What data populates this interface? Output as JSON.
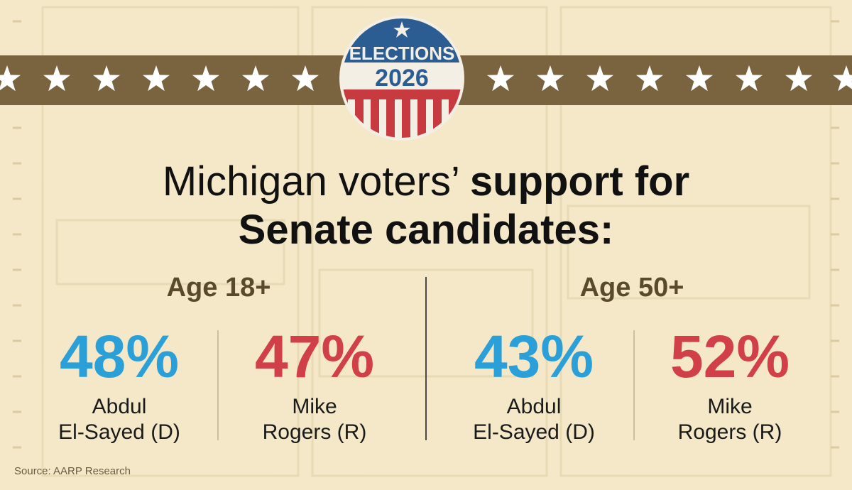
{
  "badge": {
    "top": "ELECTIONS",
    "year": "2026"
  },
  "title": {
    "regular": "Michigan voters’",
    "bold_line1": "support for",
    "bold_line2": "Senate candidates:"
  },
  "groups": [
    {
      "label": "Age 18+",
      "candidates": [
        {
          "value": "48%",
          "name": [
            "Abdul",
            "El-Sayed (D)"
          ],
          "color": "#2a9fd8"
        },
        {
          "value": "47%",
          "name": [
            "Mike",
            "Rogers (R)"
          ],
          "color": "#d13f48"
        }
      ]
    },
    {
      "label": "Age 50+",
      "candidates": [
        {
          "value": "43%",
          "name": [
            "Abdul",
            "El-Sayed (D)"
          ],
          "color": "#2a9fd8"
        },
        {
          "value": "52%",
          "name": [
            "Mike",
            "Rogers (R)"
          ],
          "color": "#d13f48"
        }
      ]
    }
  ],
  "source": "Source: AARP Research"
}
